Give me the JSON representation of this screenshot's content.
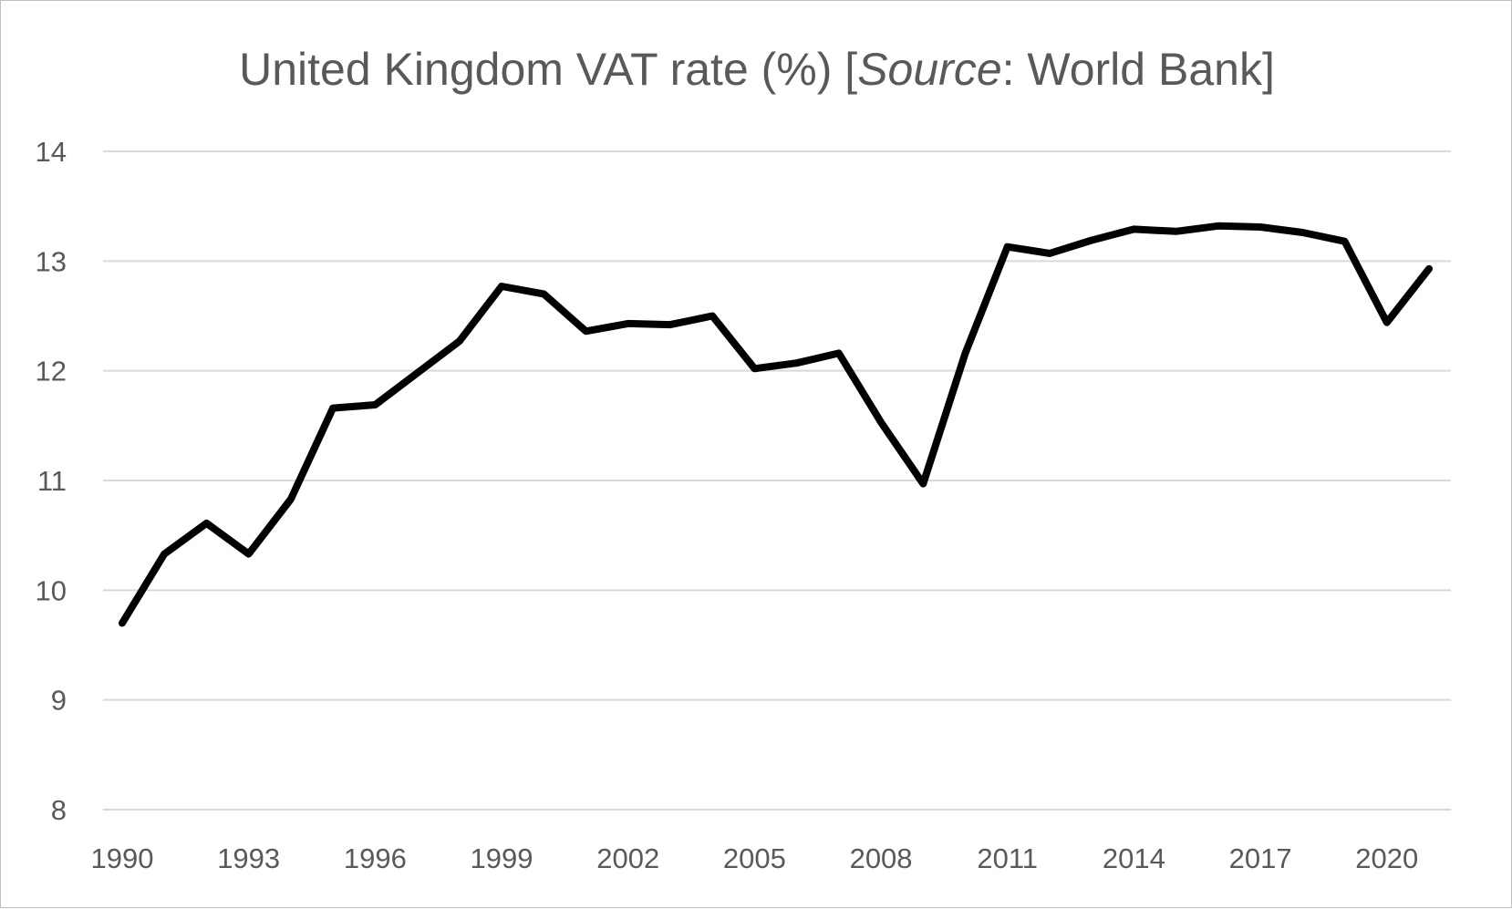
{
  "chart_data": {
    "type": "line",
    "title": {
      "prefix": "United Kingdom VAT rate (%) [",
      "italic": "Source",
      "suffix": ": World Bank]"
    },
    "xlabel": "",
    "ylabel": "",
    "ylim": [
      8,
      14
    ],
    "yticks": [
      8,
      9,
      10,
      11,
      12,
      13,
      14
    ],
    "xticks": [
      1990,
      1993,
      1996,
      1999,
      2002,
      2005,
      2008,
      2011,
      2014,
      2017,
      2020
    ],
    "grid": true,
    "legend": "none",
    "line_color": "#000000",
    "x": [
      1990,
      1991,
      1992,
      1993,
      1994,
      1995,
      1996,
      1997,
      1998,
      1999,
      2000,
      2001,
      2002,
      2003,
      2004,
      2005,
      2006,
      2007,
      2008,
      2009,
      2010,
      2011,
      2012,
      2013,
      2014,
      2015,
      2016,
      2017,
      2018,
      2019,
      2020,
      2021
    ],
    "series": [
      {
        "values": [
          9.7,
          10.33,
          10.61,
          10.33,
          10.83,
          11.66,
          11.69,
          11.98,
          12.27,
          12.77,
          12.7,
          12.36,
          12.43,
          12.42,
          12.5,
          12.02,
          12.07,
          12.16,
          11.53,
          10.97,
          12.16,
          13.13,
          13.07,
          13.19,
          13.29,
          13.27,
          13.32,
          13.31,
          13.26,
          13.18,
          12.44,
          12.93
        ]
      }
    ]
  }
}
